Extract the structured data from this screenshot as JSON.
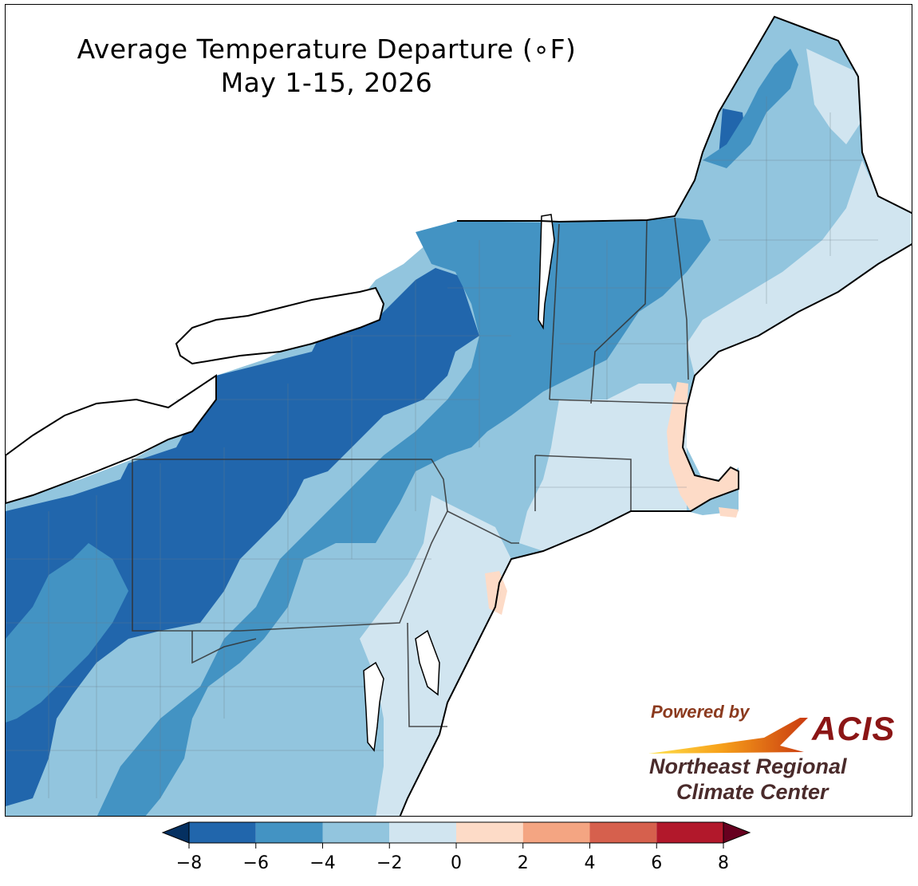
{
  "title": {
    "line1": "Average Temperature Departure (∘F)",
    "line2": "May 1-15, 2026"
  },
  "legend": {
    "ticks": [
      "−8",
      "−6",
      "−4",
      "−2",
      "0",
      "2",
      "4",
      "6",
      "8"
    ],
    "bins": [
      {
        "range": "-8 to -6",
        "color": "#2166ac"
      },
      {
        "range": "-6 to -4",
        "color": "#4393c3"
      },
      {
        "range": "-4 to -2",
        "color": "#92c5de"
      },
      {
        "range": "-2 to 0",
        "color": "#d1e5f0"
      },
      {
        "range": "0 to 2",
        "color": "#fddbc7"
      },
      {
        "range": "2 to 4",
        "color": "#f4a582"
      },
      {
        "range": "4 to 6",
        "color": "#d6604d"
      },
      {
        "range": "6 to 8",
        "color": "#b2182b"
      }
    ],
    "under_color": "#053061",
    "over_color": "#67001f"
  },
  "logo": {
    "powered_by": "Powered by",
    "acis": "ACIS",
    "org_line1": "Northeast Regional",
    "org_line2": "Climate Center"
  },
  "colors": {
    "land_outline": "#000000",
    "county_lines": "#6d7b86",
    "water": "#ffffff"
  }
}
